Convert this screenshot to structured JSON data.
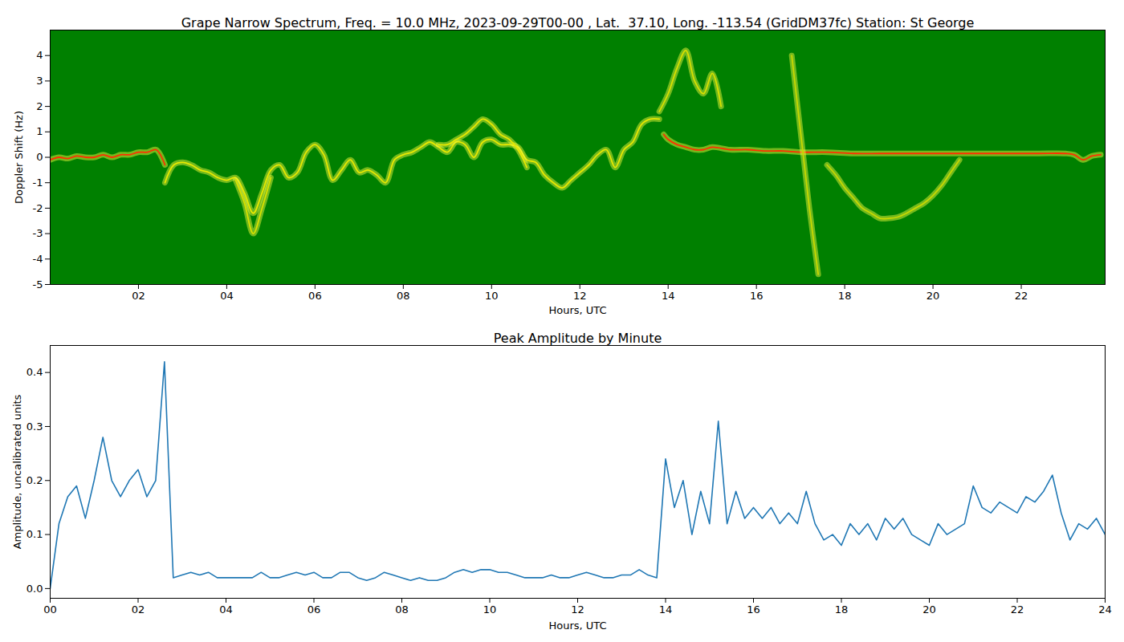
{
  "chart_data": [
    {
      "type": "line",
      "title": "Grape Narrow Spectrum, Freq. = 10.0 MHz, 2023-09-29T00-00 , Lat.  37.10, Long. -113.54 (GridDM37fc) Station: St George",
      "x_label": "Hours, UTC",
      "y_label": "Doppler Shift (Hz)",
      "xlim": [
        0,
        23.9
      ],
      "ylim": [
        -5,
        5
      ],
      "xticks": [
        {
          "value": 2,
          "label": "02"
        },
        {
          "value": 4,
          "label": "04"
        },
        {
          "value": 6,
          "label": "06"
        },
        {
          "value": 8,
          "label": "08"
        },
        10,
        12,
        14,
        16,
        18,
        20,
        22
      ],
      "yticks": [
        -5,
        -4,
        -3,
        -2,
        -1,
        0,
        1,
        2,
        3,
        4
      ],
      "grid": false,
      "series": [
        {
          "color": "#ff3000",
          "x": [
            0,
            0.2,
            0.4,
            0.6,
            0.8,
            1.0,
            1.2,
            1.4,
            1.6,
            1.8,
            2.0,
            2.2,
            2.4,
            2.6
          ],
          "values": [
            -0.1,
            0,
            -0.05,
            0.05,
            0,
            0,
            0.1,
            0,
            0.1,
            0.1,
            0.2,
            0.2,
            0.3,
            -0.3
          ]
        },
        {
          "color": "#e8e800",
          "x": [
            2.6,
            2.8,
            3.0,
            3.2,
            3.4,
            3.6,
            3.8,
            4.0,
            4.2,
            4.4,
            4.6,
            4.8,
            5.0,
            5.2,
            5.4,
            5.6,
            5.8,
            6.0,
            6.2,
            6.4,
            6.6,
            6.8,
            7.0,
            7.2,
            7.4,
            7.6,
            7.8,
            8.0,
            8.2,
            8.4,
            8.6,
            8.8,
            9.0,
            9.2,
            9.4,
            9.6,
            9.8,
            10.0,
            10.2,
            10.4,
            10.6,
            10.8,
            11.0,
            11.2,
            11.4,
            11.6,
            11.8,
            12.0,
            12.2,
            12.4,
            12.6,
            12.8,
            13.0,
            13.2,
            13.4,
            13.6,
            13.8
          ],
          "values": [
            -1.0,
            -0.3,
            -0.2,
            -0.3,
            -0.5,
            -0.6,
            -0.8,
            -0.9,
            -0.8,
            -1.4,
            -2.2,
            -1.4,
            -0.5,
            -0.3,
            -0.8,
            -0.6,
            0.2,
            0.5,
            0.1,
            -0.9,
            -0.5,
            -0.1,
            -0.6,
            -0.5,
            -0.7,
            -1.0,
            -0.1,
            0.1,
            0.2,
            0.4,
            0.6,
            0.4,
            0.2,
            0.6,
            0.5,
            0.0,
            0.6,
            0.7,
            0.5,
            0.5,
            0.4,
            -0.1,
            -0.2,
            -0.7,
            -1.0,
            -1.2,
            -0.9,
            -0.6,
            -0.3,
            0.1,
            0.3,
            -0.4,
            0.3,
            0.6,
            1.3,
            1.5,
            1.5
          ]
        },
        {
          "color": "#d8e000",
          "x": [
            4.2,
            4.4,
            4.6,
            4.8,
            5.0
          ],
          "values": [
            -0.9,
            -1.8,
            -3.0,
            -2.0,
            -0.8
          ]
        },
        {
          "color": "#e8e800",
          "x": [
            8.8,
            9.0,
            9.2,
            9.4,
            9.6,
            9.8,
            10.0,
            10.2,
            10.4,
            10.6,
            10.8
          ],
          "values": [
            0.5,
            0.5,
            0.7,
            0.9,
            1.2,
            1.5,
            1.3,
            0.9,
            0.7,
            0.3,
            -0.4
          ]
        },
        {
          "color": "#d8e000",
          "x": [
            13.8,
            14.0,
            14.2,
            14.4,
            14.6,
            14.8,
            15.0,
            15.2
          ],
          "values": [
            1.8,
            2.5,
            3.5,
            4.2,
            3.0,
            2.5,
            3.3,
            2.0
          ]
        },
        {
          "color": "#ff3000",
          "x": [
            13.9,
            14.0,
            14.2,
            14.4,
            14.6,
            14.8,
            15.0,
            15.4,
            15.8,
            16.2,
            16.6,
            17.0,
            17.6,
            18.2,
            18.8,
            19.4,
            20.0,
            20.6,
            21.2,
            21.8,
            22.4,
            23.0,
            23.2,
            23.4,
            23.6,
            23.8
          ],
          "values": [
            0.9,
            0.7,
            0.5,
            0.4,
            0.3,
            0.3,
            0.4,
            0.3,
            0.3,
            0.25,
            0.25,
            0.2,
            0.2,
            0.15,
            0.15,
            0.15,
            0.15,
            0.15,
            0.15,
            0.15,
            0.15,
            0.15,
            0.1,
            -0.1,
            0.05,
            0.1
          ]
        },
        {
          "color": "#c8d800",
          "x": [
            17.6,
            17.8,
            18.0,
            18.2,
            18.4,
            18.6,
            18.8,
            19.0,
            19.2,
            19.4,
            19.6,
            19.8,
            20.0,
            20.2,
            20.4,
            20.6
          ],
          "values": [
            -0.3,
            -0.7,
            -1.2,
            -1.6,
            -2.0,
            -2.2,
            -2.4,
            -2.4,
            -2.35,
            -2.2,
            -2.0,
            -1.8,
            -1.5,
            -1.1,
            -0.6,
            -0.1
          ]
        },
        {
          "color": "#c8d800",
          "x": [
            16.8,
            17.0,
            17.2,
            17.4
          ],
          "values": [
            4.0,
            1.0,
            -2.0,
            -4.6
          ]
        }
      ]
    },
    {
      "type": "line",
      "title": "Peak Amplitude by Minute",
      "x_label": "Hours, UTC",
      "y_label": "Amplitude, uncalibrated units",
      "xlim": [
        0,
        24
      ],
      "ylim": [
        -0.018,
        0.45
      ],
      "xticks": [
        {
          "value": 0,
          "label": "00"
        },
        {
          "value": 2,
          "label": "02"
        },
        {
          "value": 4,
          "label": "04"
        },
        {
          "value": 6,
          "label": "06"
        },
        {
          "value": 8,
          "label": "08"
        },
        10,
        12,
        14,
        16,
        18,
        20,
        22,
        24
      ],
      "yticks": [
        {
          "value": 0,
          "label": "0.0"
        },
        0.1,
        0.2,
        0.3,
        0.4
      ],
      "grid": false,
      "color": "#1f77b4",
      "x": [
        0,
        0.2,
        0.4,
        0.6,
        0.8,
        1.0,
        1.2,
        1.4,
        1.6,
        1.8,
        2.0,
        2.2,
        2.4,
        2.6,
        2.8,
        3.0,
        3.2,
        3.4,
        3.6,
        3.8,
        4.0,
        4.2,
        4.4,
        4.6,
        4.8,
        5.0,
        5.2,
        5.4,
        5.6,
        5.8,
        6.0,
        6.2,
        6.4,
        6.6,
        6.8,
        7.0,
        7.2,
        7.4,
        7.6,
        7.8,
        8.0,
        8.2,
        8.4,
        8.6,
        8.8,
        9.0,
        9.2,
        9.4,
        9.6,
        9.8,
        10.0,
        10.2,
        10.4,
        10.6,
        10.8,
        11.0,
        11.2,
        11.4,
        11.6,
        11.8,
        12.0,
        12.2,
        12.4,
        12.6,
        12.8,
        13.0,
        13.2,
        13.4,
        13.6,
        13.8,
        14.0,
        14.2,
        14.4,
        14.6,
        14.8,
        15.0,
        15.2,
        15.4,
        15.6,
        15.8,
        16.0,
        16.2,
        16.4,
        16.6,
        16.8,
        17.0,
        17.2,
        17.4,
        17.6,
        17.8,
        18.0,
        18.2,
        18.4,
        18.6,
        18.8,
        19.0,
        19.2,
        19.4,
        19.6,
        19.8,
        20.0,
        20.2,
        20.4,
        20.6,
        20.8,
        21.0,
        21.2,
        21.4,
        21.6,
        21.8,
        22.0,
        22.2,
        22.4,
        22.6,
        22.8,
        23.0,
        23.2,
        23.4,
        23.6,
        23.8,
        24.0
      ],
      "values": [
        0.0,
        0.12,
        0.17,
        0.19,
        0.13,
        0.2,
        0.28,
        0.2,
        0.17,
        0.2,
        0.22,
        0.17,
        0.2,
        0.42,
        0.02,
        0.025,
        0.03,
        0.025,
        0.03,
        0.02,
        0.02,
        0.02,
        0.02,
        0.02,
        0.03,
        0.02,
        0.02,
        0.025,
        0.03,
        0.025,
        0.03,
        0.02,
        0.02,
        0.03,
        0.03,
        0.02,
        0.015,
        0.02,
        0.03,
        0.025,
        0.02,
        0.015,
        0.02,
        0.015,
        0.015,
        0.02,
        0.03,
        0.035,
        0.03,
        0.035,
        0.035,
        0.03,
        0.03,
        0.025,
        0.02,
        0.02,
        0.02,
        0.025,
        0.02,
        0.02,
        0.025,
        0.03,
        0.025,
        0.02,
        0.02,
        0.025,
        0.025,
        0.035,
        0.025,
        0.02,
        0.24,
        0.15,
        0.2,
        0.1,
        0.18,
        0.12,
        0.31,
        0.12,
        0.18,
        0.13,
        0.15,
        0.13,
        0.15,
        0.12,
        0.14,
        0.12,
        0.18,
        0.12,
        0.09,
        0.1,
        0.08,
        0.12,
        0.1,
        0.12,
        0.09,
        0.13,
        0.11,
        0.13,
        0.1,
        0.09,
        0.08,
        0.12,
        0.1,
        0.11,
        0.12,
        0.19,
        0.15,
        0.14,
        0.16,
        0.15,
        0.14,
        0.17,
        0.16,
        0.18,
        0.21,
        0.14,
        0.09,
        0.12,
        0.11,
        0.13,
        0.1
      ]
    }
  ]
}
